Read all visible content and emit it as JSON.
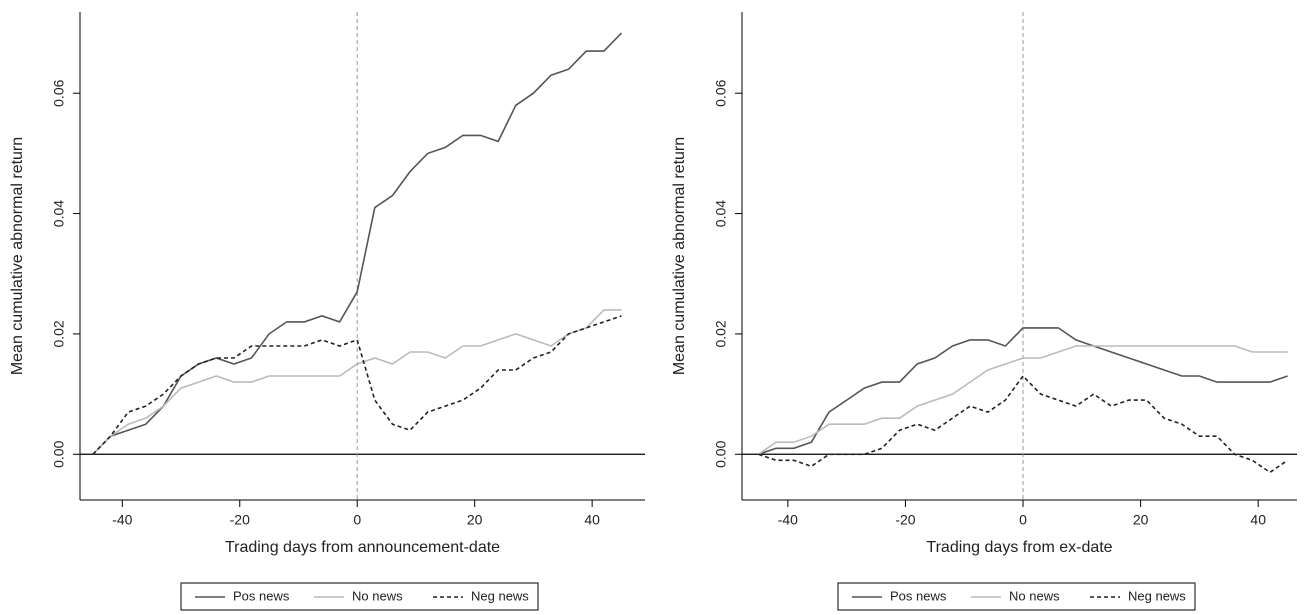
{
  "chart_data": [
    {
      "type": "line",
      "x_label": "Trading days from announcement-date",
      "y_label": "Mean cumulative abnormal return",
      "x": [
        -45,
        -42,
        -39,
        -36,
        -33,
        -30,
        -27,
        -24,
        -21,
        -18,
        -15,
        -12,
        -9,
        -6,
        -3,
        0,
        3,
        6,
        9,
        12,
        15,
        18,
        21,
        24,
        27,
        30,
        33,
        36,
        39,
        42,
        45
      ],
      "series": [
        {
          "name": "Pos news",
          "color": "#555555",
          "dashed": false,
          "values": [
            0,
            0.003,
            0.004,
            0.005,
            0.008,
            0.013,
            0.015,
            0.016,
            0.015,
            0.016,
            0.02,
            0.022,
            0.022,
            0.023,
            0.022,
            0.027,
            0.041,
            0.043,
            0.047,
            0.05,
            0.051,
            0.053,
            0.053,
            0.052,
            0.058,
            0.06,
            0.063,
            0.064,
            0.067,
            0.067,
            0.07
          ]
        },
        {
          "name": "No news",
          "color": "#bbbbbb",
          "dashed": false,
          "values": [
            0,
            0.003,
            0.005,
            0.006,
            0.008,
            0.011,
            0.012,
            0.013,
            0.012,
            0.012,
            0.013,
            0.013,
            0.013,
            0.013,
            0.013,
            0.015,
            0.016,
            0.015,
            0.017,
            0.017,
            0.016,
            0.018,
            0.018,
            0.019,
            0.02,
            0.019,
            0.018,
            0.02,
            0.021,
            0.024,
            0.024
          ]
        },
        {
          "name": "Neg news",
          "color": "#222222",
          "dashed": true,
          "values": [
            0,
            0.003,
            0.007,
            0.008,
            0.01,
            0.013,
            0.015,
            0.016,
            0.016,
            0.018,
            0.018,
            0.018,
            0.018,
            0.019,
            0.018,
            0.019,
            0.009,
            0.005,
            0.004,
            0.007,
            0.008,
            0.009,
            0.011,
            0.014,
            0.014,
            0.016,
            0.017,
            0.02,
            0.021,
            0.022,
            0.023
          ]
        }
      ],
      "xlim": [
        -47.2,
        49
      ],
      "ylim": [
        -0.0076,
        0.0735
      ],
      "xticks": [
        -40,
        -20,
        0,
        20,
        40
      ],
      "yticks": [
        {
          "value": 0,
          "label": "0.00"
        },
        0.02,
        0.04,
        0.06
      ],
      "vline": 0,
      "hline": 0,
      "legend": "bottom"
    },
    {
      "type": "line",
      "x_label": "Trading days from ex-date",
      "y_label": "Mean cumulative abnormal return",
      "x": [
        -45,
        -42,
        -39,
        -36,
        -33,
        -30,
        -27,
        -24,
        -21,
        -18,
        -15,
        -12,
        -9,
        -6,
        -3,
        0,
        3,
        6,
        9,
        12,
        15,
        18,
        21,
        24,
        27,
        30,
        33,
        36,
        39,
        42,
        45
      ],
      "series": [
        {
          "name": "Pos news",
          "color": "#555555",
          "dashed": false,
          "values": [
            0,
            0.001,
            0.001,
            0.002,
            0.007,
            0.009,
            0.011,
            0.012,
            0.012,
            0.015,
            0.016,
            0.018,
            0.019,
            0.019,
            0.018,
            0.021,
            0.021,
            0.021,
            0.019,
            0.018,
            0.017,
            0.016,
            0.015,
            0.014,
            0.013,
            0.013,
            0.012,
            0.012,
            0.012,
            0.012,
            0.013
          ]
        },
        {
          "name": "No news",
          "color": "#bbbbbb",
          "dashed": false,
          "values": [
            0,
            0.002,
            0.002,
            0.003,
            0.005,
            0.005,
            0.005,
            0.006,
            0.006,
            0.008,
            0.009,
            0.01,
            0.012,
            0.014,
            0.015,
            0.016,
            0.016,
            0.017,
            0.018,
            0.018,
            0.018,
            0.018,
            0.018,
            0.018,
            0.018,
            0.018,
            0.018,
            0.018,
            0.017,
            0.017,
            0.017
          ]
        },
        {
          "name": "Neg news",
          "color": "#222222",
          "dashed": true,
          "values": [
            0,
            -0.001,
            -0.001,
            -0.002,
            0,
            0,
            0,
            0.001,
            0.004,
            0.005,
            0.004,
            0.006,
            0.008,
            0.007,
            0.009,
            0.013,
            0.01,
            0.009,
            0.008,
            0.01,
            0.008,
            0.009,
            0.009,
            0.006,
            0.005,
            0.003,
            0.003,
            0,
            -0.001,
            -0.003,
            -0.001
          ]
        }
      ],
      "xlim": [
        -47.8,
        46.6
      ],
      "ylim": [
        -0.0076,
        0.0735
      ],
      "xticks": [
        -40,
        -20,
        0,
        20,
        40
      ],
      "yticks": [
        {
          "value": 0,
          "label": "0.00"
        },
        0.02,
        0.04,
        0.06
      ],
      "vline": 0,
      "hline": 0,
      "legend": "bottom"
    }
  ]
}
